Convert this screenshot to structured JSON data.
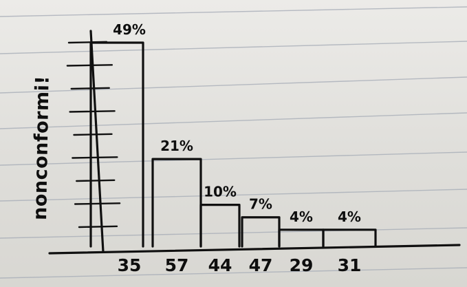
{
  "chart_data": {
    "type": "bar",
    "title": "",
    "xlabel": "",
    "ylabel": "nonconformi!",
    "categories": [
      "35",
      "57",
      "44",
      "47",
      "29",
      "31"
    ],
    "values": [
      49,
      21,
      10,
      7,
      4,
      4
    ],
    "data_labels": [
      "49%",
      "21%",
      "10%",
      "7%",
      "4%",
      "4%"
    ],
    "ylim": [
      0,
      50
    ],
    "grid": false,
    "legend": "none"
  },
  "colors": {
    "ink": "#101010",
    "paper": "#e6e5e1",
    "ruled_line": "#a8aeb8"
  }
}
